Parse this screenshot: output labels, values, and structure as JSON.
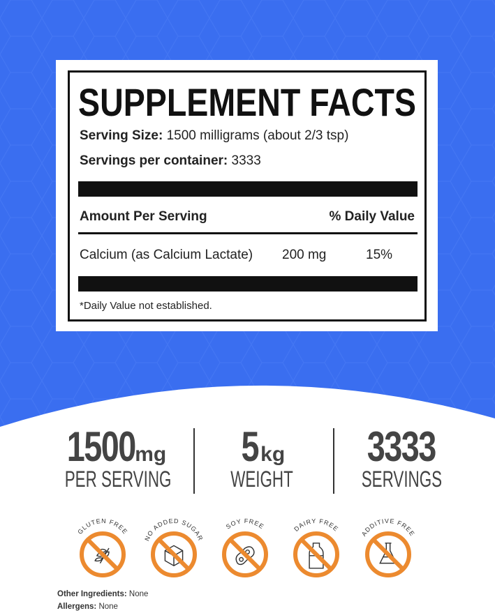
{
  "colors": {
    "background_blue": "#3a6ef0",
    "badge_orange": "#ec8a2f",
    "text_dark": "#444444"
  },
  "facts": {
    "title": "SUPPLEMENT FACTS",
    "serving_size_label": "Serving Size:",
    "serving_size_value": "1500 milligrams (about 2/3 tsp)",
    "servings_label": "Servings per container:",
    "servings_value": "3333",
    "amount_header": "Amount Per Serving",
    "dv_header": "% Daily Value",
    "nutrients": [
      {
        "name": "Calcium (as Calcium Lactate)",
        "amount": "200 mg",
        "dv": "15%"
      }
    ],
    "footnote": "*Daily Value not established."
  },
  "stats": [
    {
      "value": "1500",
      "unit": "mg",
      "label": "PER SERVING"
    },
    {
      "value": "5",
      "unit": "kg",
      "label": "WEIGHT"
    },
    {
      "value": "3333",
      "unit": "",
      "label": "SERVINGS"
    }
  ],
  "badges": [
    {
      "label": "GLUTEN FREE",
      "icon": "wheat-icon"
    },
    {
      "label": "NO ADDED SUGAR",
      "icon": "sugar-cube-icon"
    },
    {
      "label": "SOY FREE",
      "icon": "soybean-icon"
    },
    {
      "label": "DAIRY FREE",
      "icon": "milk-bottle-icon"
    },
    {
      "label": "ADDITIVE FREE",
      "icon": "flask-icon"
    }
  ],
  "footer": {
    "ingredients_label": "Other Ingredients:",
    "ingredients_value": "None",
    "allergens_label": "Allergens:",
    "allergens_value": "None"
  }
}
